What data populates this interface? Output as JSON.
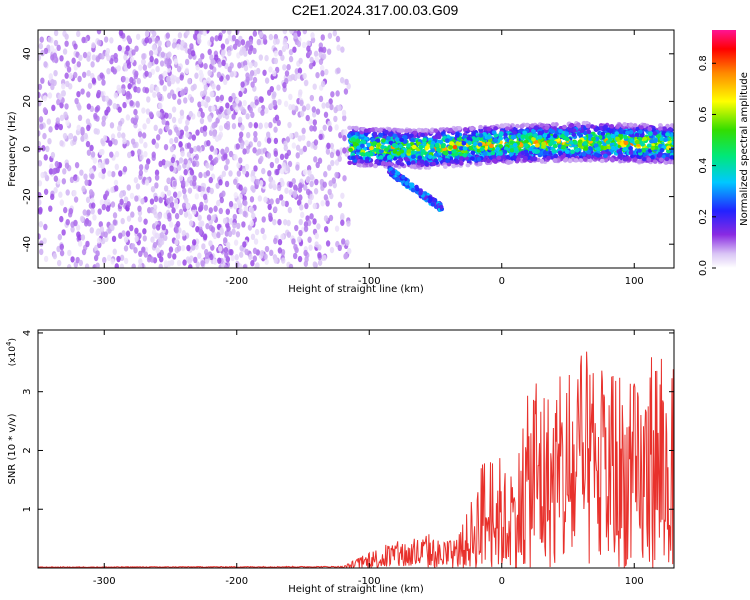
{
  "page_title": "C2E1.2024.317.00.03.G09",
  "chart_data": [
    {
      "type": "heatmap",
      "xlabel": "Height of straight line (km)",
      "ylabel": "Frequency (Hz)",
      "xlim": [
        -350,
        130
      ],
      "ylim": [
        -50,
        50
      ],
      "x_ticks": [
        -300,
        -200,
        -100,
        0,
        100
      ],
      "y_ticks": [
        -40,
        -20,
        0,
        20,
        40
      ],
      "colorbar": {
        "label": "Normalized spectral amplitude",
        "range": [
          0,
          0.93
        ],
        "ticks": [
          "0.0",
          "0.2",
          "0.4",
          "0.6",
          "0.8"
        ],
        "tick_values": [
          0.0,
          0.2,
          0.4,
          0.6,
          0.8
        ]
      },
      "regions": [
        {
          "x_range": [
            -350,
            -115
          ],
          "freq_range": [
            -50,
            50
          ],
          "amplitude": [
            0.02,
            0.12
          ]
        },
        {
          "x_range": [
            -115,
            130
          ],
          "center_freq_at": [
            [
              -115,
              1
            ],
            [
              -60,
              0
            ],
            [
              0,
              2
            ],
            [
              60,
              3
            ],
            [
              130,
              2
            ]
          ],
          "bandwidth_hz": 5,
          "amplitude": [
            0.2,
            0.9
          ]
        },
        {
          "x_range": [
            -85,
            -45
          ],
          "freq_range": [
            -25,
            -9
          ],
          "amplitude": [
            0.15,
            0.35
          ]
        }
      ],
      "grid": false
    },
    {
      "type": "line",
      "xlabel": "Height of straight line (km)",
      "ylabel": "SNR (10 * v/v)",
      "y_scale_label": "(x10",
      "y_scale_exp": "4",
      "y_scale_close": ")",
      "xlim": [
        -350,
        130
      ],
      "ylim": [
        0,
        4.05
      ],
      "x_ticks": [
        -300,
        -200,
        -100,
        0,
        100
      ],
      "y_ticks": [
        1,
        2,
        3,
        4
      ],
      "series": [
        {
          "color": "#e8312c",
          "envelope": [
            [
              -350,
              0.02
            ],
            [
              -120,
              0.03
            ],
            [
              -110,
              0.15
            ],
            [
              -90,
              0.4
            ],
            [
              -70,
              0.5
            ],
            [
              -55,
              0.6
            ],
            [
              -45,
              0.45
            ],
            [
              -35,
              0.5
            ],
            [
              -25,
              1.0
            ],
            [
              -15,
              1.9
            ],
            [
              -5,
              2.1
            ],
            [
              5,
              1.6
            ],
            [
              15,
              2.3
            ],
            [
              25,
              3.7
            ],
            [
              35,
              3.1
            ],
            [
              45,
              3.3
            ],
            [
              55,
              3.6
            ],
            [
              65,
              3.7
            ],
            [
              75,
              3.4
            ],
            [
              85,
              3.6
            ],
            [
              95,
              3.3
            ],
            [
              105,
              3.1
            ],
            [
              115,
              4.05
            ],
            [
              125,
              3.5
            ],
            [
              130,
              3.4
            ]
          ],
          "sample_step_km": 0.5
        }
      ],
      "grid": false
    }
  ],
  "icons": [
    "colorbar"
  ]
}
